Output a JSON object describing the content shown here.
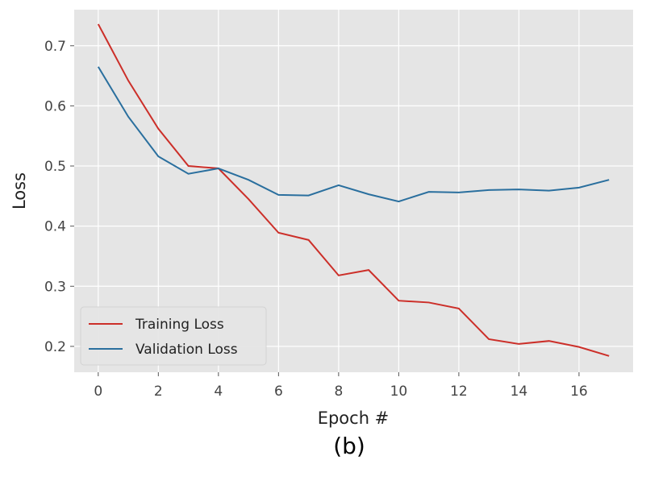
{
  "chart_data": {
    "type": "line",
    "title": "",
    "caption": "(b)",
    "xlabel": "Epoch #",
    "ylabel": "Loss",
    "xlim": [
      -0.8,
      17.8
    ],
    "ylim": [
      0.157,
      0.76
    ],
    "xticks": [
      0,
      2,
      4,
      6,
      8,
      10,
      12,
      14,
      16
    ],
    "yticks": [
      0.2,
      0.3,
      0.4,
      0.5,
      0.6,
      0.7
    ],
    "grid": true,
    "legend_position": "lower-left",
    "x": [
      0,
      1,
      2,
      3,
      4,
      5,
      6,
      7,
      8,
      9,
      10,
      11,
      12,
      13,
      14,
      15,
      16,
      17
    ],
    "series": [
      {
        "name": "Training Loss",
        "color": "#cc2f29",
        "values": [
          0.736,
          0.642,
          0.562,
          0.5,
          0.496,
          0.445,
          0.389,
          0.377,
          0.318,
          0.327,
          0.276,
          0.273,
          0.263,
          0.212,
          0.204,
          0.209,
          0.199,
          0.184
        ]
      },
      {
        "name": "Validation Loss",
        "color": "#2a6f9e",
        "values": [
          0.665,
          0.582,
          0.516,
          0.487,
          0.496,
          0.477,
          0.452,
          0.451,
          0.468,
          0.453,
          0.441,
          0.457,
          0.456,
          0.46,
          0.461,
          0.459,
          0.464,
          0.477
        ]
      }
    ]
  }
}
